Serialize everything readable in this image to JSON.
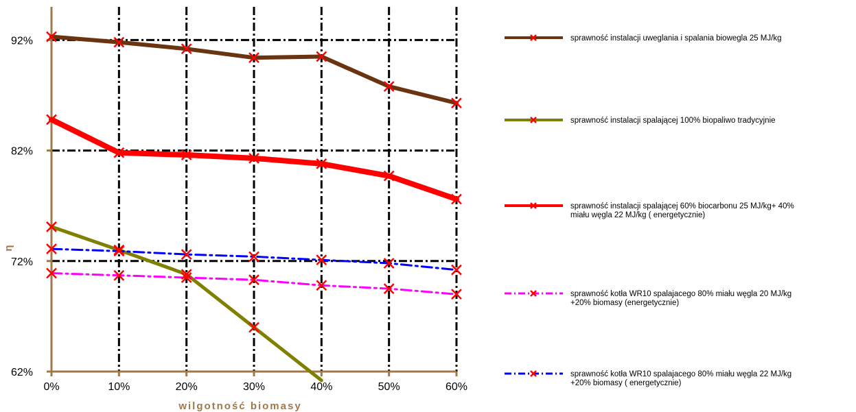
{
  "chart_data": {
    "type": "line",
    "xlabel": "wilgotność biomasy",
    "ylabel": "η",
    "x": [
      0,
      10,
      20,
      30,
      40,
      50,
      60
    ],
    "x_tick_labels": [
      "0%",
      "10%",
      "20%",
      "30%",
      "40%",
      "50%",
      "60%"
    ],
    "ylim": [
      62,
      95
    ],
    "y_ticks": [
      62,
      72,
      82,
      92
    ],
    "y_tick_labels": [
      "62%",
      "72%",
      "82%",
      "92%"
    ],
    "grid": true,
    "legend_position": "right",
    "series": [
      {
        "name": "sprawność instalacji uweglania i spalania biowegla 25 MJ/kg",
        "legend_lines": [
          "sprawność instalacji uweglania i spalania biowegla 25 MJ/kg"
        ],
        "color": "#6b3410",
        "style": "solid",
        "width": 6,
        "x": [
          0,
          10,
          20,
          30,
          40,
          50,
          60
        ],
        "values": [
          92.3,
          91.8,
          91.2,
          90.4,
          90.5,
          87.8,
          86.3
        ]
      },
      {
        "name": "sprawność instalacji spalającej 100% biopaliwo tradycyjnie",
        "legend_lines": [
          "sprawność instalacji spalającej 100% biopaliwo tradycyjnie"
        ],
        "color": "#808000",
        "style": "solid",
        "width": 5,
        "x": [
          0,
          10,
          20,
          30,
          40
        ],
        "values": [
          75.1,
          73.0,
          70.8,
          66.0,
          61.2
        ]
      },
      {
        "name": "sprawność instalacji spalającej 60% biocarbonu 25 MJ/kg+ 40% miału węgla 22 MJ/kg ( energetycznie)",
        "legend_lines": [
          "sprawność instalacji spalającej 60% biocarbonu 25 MJ/kg+ 40%",
          "miału węgla 22 MJ/kg ( energetycznie)"
        ],
        "color": "#ff0000",
        "style": "solid",
        "width": 8,
        "x": [
          0,
          10,
          20,
          30,
          40,
          50,
          60
        ],
        "values": [
          84.8,
          81.8,
          81.6,
          81.3,
          80.8,
          79.7,
          77.6
        ]
      },
      {
        "name": "sprawność kotła WR10 spalajacego  80% miału węgla 20 MJ/kg +20% biomasy (energetycznie)",
        "legend_lines": [
          "sprawność kotła WR10 spalajacego  80% miału węgla 20 MJ/kg",
          "+20% biomasy (energetycznie)"
        ],
        "color": "#ff00ff",
        "style": "dashdot",
        "width": 3,
        "x": [
          0,
          10,
          20,
          30,
          40,
          50,
          60
        ],
        "values": [
          70.9,
          70.7,
          70.5,
          70.3,
          69.8,
          69.5,
          69.0
        ]
      },
      {
        "name": "sprawność kotła WR10 spalajacego  80% miału węgla 22 MJ/kg +20% biomasy ( energetycznie)",
        "legend_lines": [
          "sprawność kotła WR10 spalajacego  80% miału węgla 22 MJ/kg",
          "+20% biomasy ( energetycznie)"
        ],
        "color": "#0000ff",
        "style": "dashdot",
        "width": 3,
        "x": [
          0,
          10,
          20,
          30,
          40,
          50,
          60
        ],
        "values": [
          73.1,
          72.9,
          72.6,
          72.4,
          72.1,
          71.8,
          71.2
        ]
      }
    ],
    "marker": {
      "shape": "x",
      "color": "#ff0000"
    },
    "colors": {
      "axis": "#a0794a",
      "grid": "#000000",
      "text": "#000000"
    }
  }
}
